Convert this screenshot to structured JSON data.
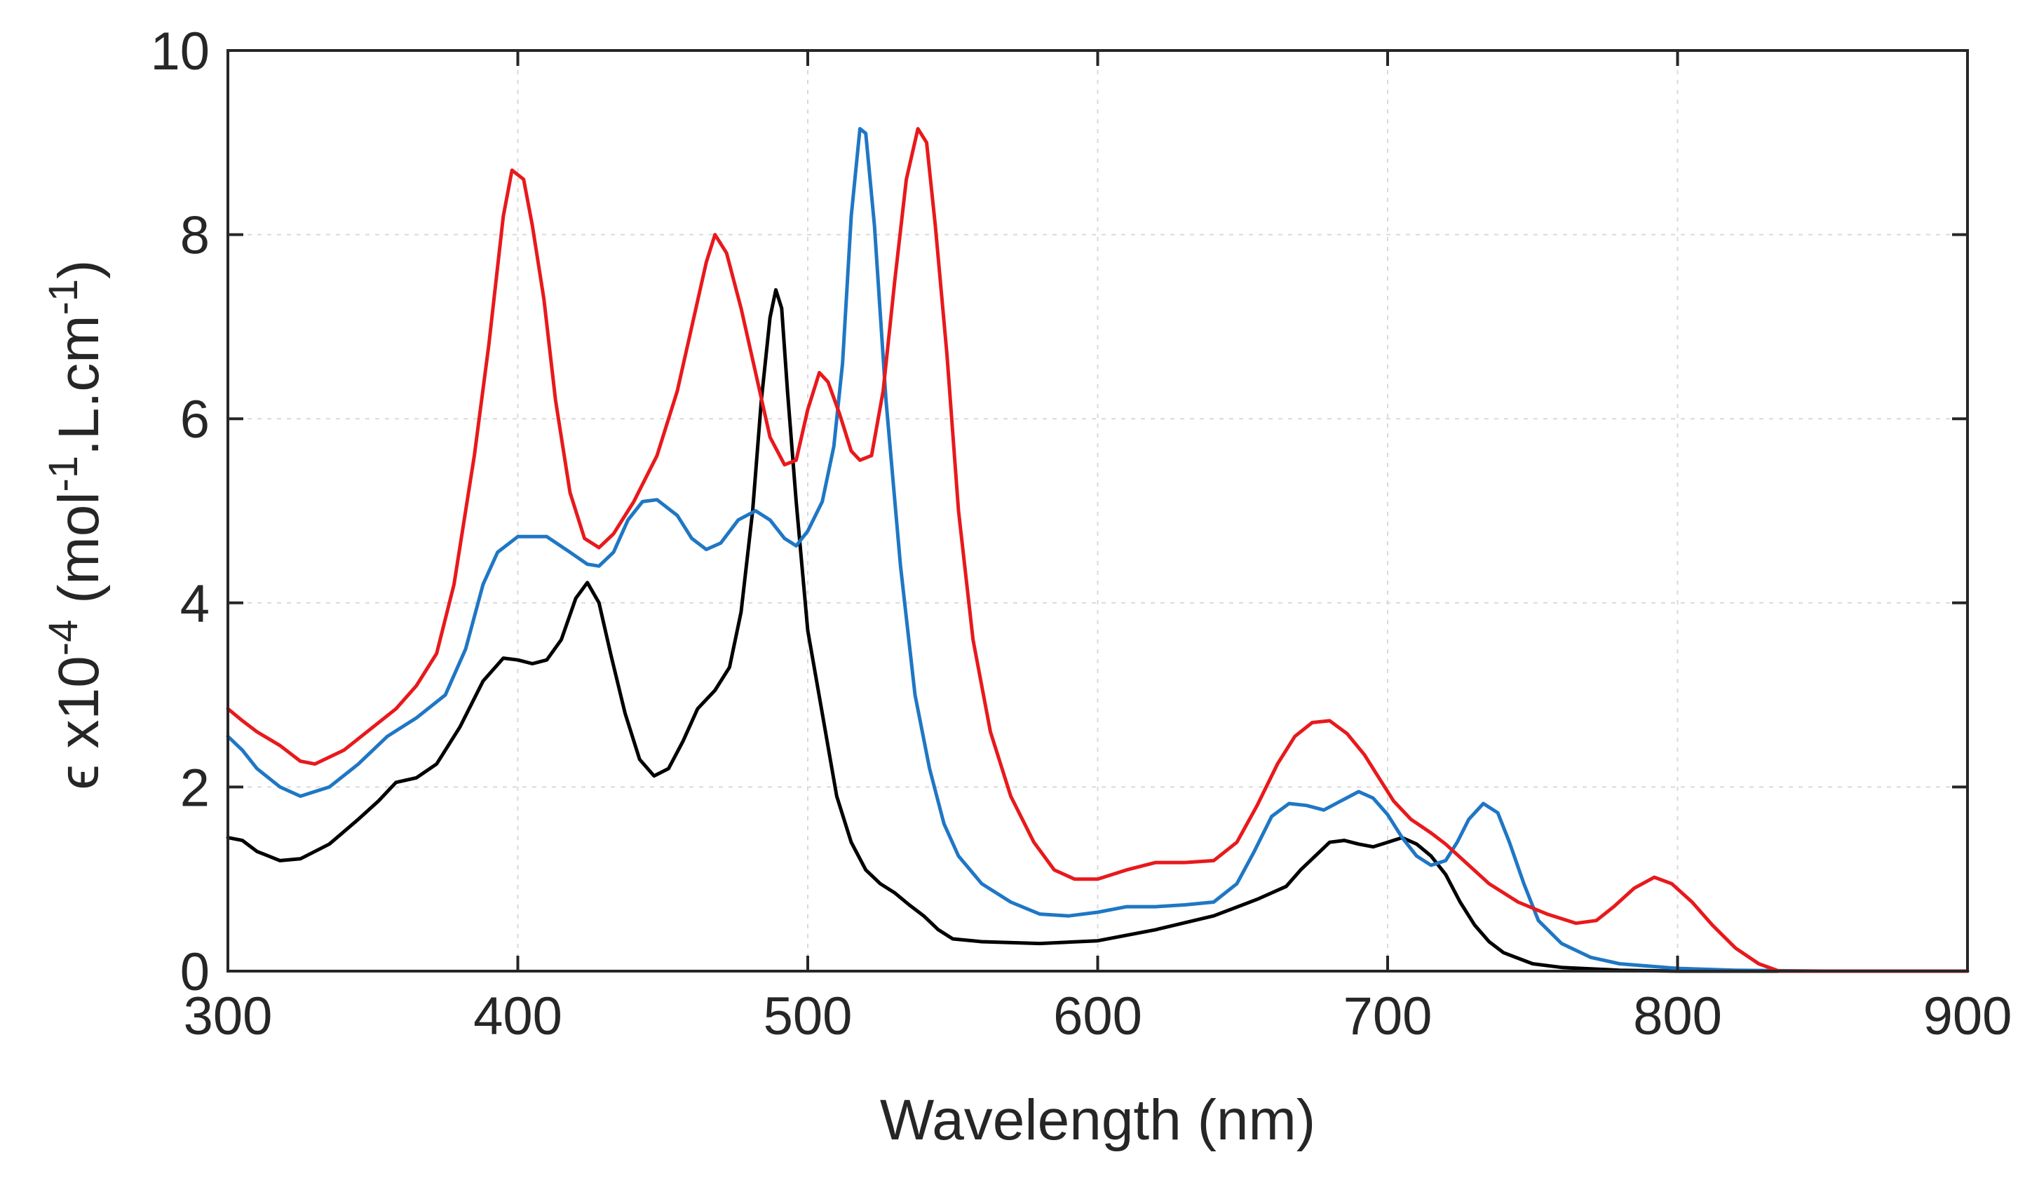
{
  "chart_data": {
    "type": "line",
    "title": "",
    "xlabel": "Wavelength (nm)",
    "ylabel_parts": [
      "ϵ",
      " x10",
      "-4",
      " (mol",
      "-1",
      ".L.cm",
      "-1",
      ")"
    ],
    "xlim": [
      300,
      900
    ],
    "ylim": [
      0,
      10
    ],
    "xticks": [
      300,
      400,
      500,
      600,
      700,
      800,
      900
    ],
    "yticks": [
      0,
      2,
      4,
      6,
      8,
      10
    ],
    "grid": true,
    "legend": "none",
    "series": [
      {
        "name": "black",
        "color": "#000000",
        "points": [
          [
            300,
            1.45
          ],
          [
            305,
            1.42
          ],
          [
            310,
            1.3
          ],
          [
            318,
            1.2
          ],
          [
            325,
            1.22
          ],
          [
            335,
            1.38
          ],
          [
            345,
            1.65
          ],
          [
            352,
            1.85
          ],
          [
            358,
            2.05
          ],
          [
            365,
            2.1
          ],
          [
            372,
            2.25
          ],
          [
            380,
            2.65
          ],
          [
            388,
            3.15
          ],
          [
            395,
            3.4
          ],
          [
            400,
            3.38
          ],
          [
            405,
            3.34
          ],
          [
            410,
            3.38
          ],
          [
            415,
            3.6
          ],
          [
            420,
            4.05
          ],
          [
            424,
            4.22
          ],
          [
            428,
            4.0
          ],
          [
            432,
            3.45
          ],
          [
            437,
            2.8
          ],
          [
            442,
            2.3
          ],
          [
            447,
            2.12
          ],
          [
            452,
            2.2
          ],
          [
            457,
            2.5
          ],
          [
            462,
            2.85
          ],
          [
            468,
            3.05
          ],
          [
            473,
            3.3
          ],
          [
            477,
            3.9
          ],
          [
            481,
            5.0
          ],
          [
            484,
            6.2
          ],
          [
            487,
            7.1
          ],
          [
            489,
            7.4
          ],
          [
            491,
            7.2
          ],
          [
            493,
            6.3
          ],
          [
            496,
            5.1
          ],
          [
            500,
            3.7
          ],
          [
            505,
            2.8
          ],
          [
            510,
            1.9
          ],
          [
            515,
            1.4
          ],
          [
            520,
            1.1
          ],
          [
            525,
            0.95
          ],
          [
            530,
            0.85
          ],
          [
            535,
            0.72
          ],
          [
            540,
            0.6
          ],
          [
            545,
            0.45
          ],
          [
            550,
            0.35
          ],
          [
            560,
            0.32
          ],
          [
            580,
            0.3
          ],
          [
            600,
            0.33
          ],
          [
            620,
            0.45
          ],
          [
            640,
            0.6
          ],
          [
            655,
            0.78
          ],
          [
            665,
            0.92
          ],
          [
            670,
            1.1
          ],
          [
            675,
            1.25
          ],
          [
            680,
            1.4
          ],
          [
            685,
            1.42
          ],
          [
            690,
            1.38
          ],
          [
            695,
            1.35
          ],
          [
            700,
            1.4
          ],
          [
            705,
            1.45
          ],
          [
            710,
            1.38
          ],
          [
            715,
            1.25
          ],
          [
            720,
            1.05
          ],
          [
            725,
            0.75
          ],
          [
            730,
            0.5
          ],
          [
            735,
            0.32
          ],
          [
            740,
            0.2
          ],
          [
            750,
            0.08
          ],
          [
            760,
            0.04
          ],
          [
            780,
            0.01
          ],
          [
            800,
            0.0
          ],
          [
            850,
            0.0
          ],
          [
            900,
            0.0
          ]
        ]
      },
      {
        "name": "blue",
        "color": "#1f77c4",
        "points": [
          [
            300,
            2.55
          ],
          [
            305,
            2.4
          ],
          [
            310,
            2.2
          ],
          [
            318,
            2.0
          ],
          [
            325,
            1.9
          ],
          [
            335,
            2.0
          ],
          [
            345,
            2.25
          ],
          [
            355,
            2.55
          ],
          [
            365,
            2.75
          ],
          [
            375,
            3.0
          ],
          [
            382,
            3.5
          ],
          [
            388,
            4.2
          ],
          [
            393,
            4.55
          ],
          [
            400,
            4.72
          ],
          [
            410,
            4.72
          ],
          [
            418,
            4.55
          ],
          [
            424,
            4.42
          ],
          [
            428,
            4.4
          ],
          [
            433,
            4.55
          ],
          [
            438,
            4.9
          ],
          [
            443,
            5.1
          ],
          [
            448,
            5.12
          ],
          [
            455,
            4.95
          ],
          [
            460,
            4.7
          ],
          [
            465,
            4.58
          ],
          [
            470,
            4.65
          ],
          [
            476,
            4.9
          ],
          [
            482,
            5.0
          ],
          [
            487,
            4.9
          ],
          [
            492,
            4.7
          ],
          [
            496,
            4.62
          ],
          [
            500,
            4.78
          ],
          [
            505,
            5.1
          ],
          [
            509,
            5.7
          ],
          [
            512,
            6.6
          ],
          [
            515,
            8.2
          ],
          [
            518,
            9.15
          ],
          [
            520,
            9.1
          ],
          [
            523,
            8.1
          ],
          [
            527,
            6.2
          ],
          [
            532,
            4.4
          ],
          [
            537,
            3.0
          ],
          [
            542,
            2.2
          ],
          [
            547,
            1.6
          ],
          [
            552,
            1.25
          ],
          [
            560,
            0.95
          ],
          [
            570,
            0.75
          ],
          [
            580,
            0.62
          ],
          [
            590,
            0.6
          ],
          [
            600,
            0.64
          ],
          [
            610,
            0.7
          ],
          [
            620,
            0.7
          ],
          [
            630,
            0.72
          ],
          [
            640,
            0.75
          ],
          [
            648,
            0.95
          ],
          [
            654,
            1.3
          ],
          [
            660,
            1.68
          ],
          [
            666,
            1.82
          ],
          [
            672,
            1.8
          ],
          [
            678,
            1.75
          ],
          [
            684,
            1.85
          ],
          [
            690,
            1.95
          ],
          [
            695,
            1.88
          ],
          [
            700,
            1.7
          ],
          [
            705,
            1.45
          ],
          [
            710,
            1.25
          ],
          [
            715,
            1.15
          ],
          [
            720,
            1.2
          ],
          [
            724,
            1.4
          ],
          [
            728,
            1.65
          ],
          [
            733,
            1.82
          ],
          [
            738,
            1.72
          ],
          [
            742,
            1.4
          ],
          [
            747,
            0.95
          ],
          [
            752,
            0.55
          ],
          [
            760,
            0.3
          ],
          [
            770,
            0.15
          ],
          [
            780,
            0.08
          ],
          [
            800,
            0.03
          ],
          [
            820,
            0.01
          ],
          [
            850,
            0.0
          ],
          [
            900,
            0.0
          ]
        ]
      },
      {
        "name": "red",
        "color": "#e8191c",
        "points": [
          [
            300,
            2.85
          ],
          [
            305,
            2.72
          ],
          [
            310,
            2.6
          ],
          [
            318,
            2.45
          ],
          [
            325,
            2.28
          ],
          [
            330,
            2.25
          ],
          [
            340,
            2.4
          ],
          [
            350,
            2.65
          ],
          [
            358,
            2.85
          ],
          [
            365,
            3.1
          ],
          [
            372,
            3.45
          ],
          [
            378,
            4.2
          ],
          [
            385,
            5.6
          ],
          [
            390,
            6.8
          ],
          [
            395,
            8.2
          ],
          [
            398,
            8.7
          ],
          [
            402,
            8.6
          ],
          [
            405,
            8.1
          ],
          [
            409,
            7.3
          ],
          [
            413,
            6.2
          ],
          [
            418,
            5.2
          ],
          [
            423,
            4.7
          ],
          [
            428,
            4.6
          ],
          [
            433,
            4.75
          ],
          [
            440,
            5.1
          ],
          [
            448,
            5.6
          ],
          [
            455,
            6.3
          ],
          [
            460,
            7.0
          ],
          [
            465,
            7.7
          ],
          [
            468,
            8.0
          ],
          [
            472,
            7.8
          ],
          [
            477,
            7.2
          ],
          [
            482,
            6.5
          ],
          [
            487,
            5.8
          ],
          [
            492,
            5.5
          ],
          [
            496,
            5.55
          ],
          [
            500,
            6.1
          ],
          [
            504,
            6.5
          ],
          [
            507,
            6.4
          ],
          [
            511,
            6.05
          ],
          [
            515,
            5.65
          ],
          [
            518,
            5.55
          ],
          [
            522,
            5.6
          ],
          [
            526,
            6.3
          ],
          [
            530,
            7.5
          ],
          [
            534,
            8.6
          ],
          [
            538,
            9.15
          ],
          [
            541,
            9.0
          ],
          [
            544,
            8.1
          ],
          [
            548,
            6.7
          ],
          [
            552,
            5.0
          ],
          [
            557,
            3.6
          ],
          [
            563,
            2.6
          ],
          [
            570,
            1.9
          ],
          [
            578,
            1.4
          ],
          [
            585,
            1.1
          ],
          [
            592,
            1.0
          ],
          [
            600,
            1.0
          ],
          [
            610,
            1.1
          ],
          [
            620,
            1.18
          ],
          [
            630,
            1.18
          ],
          [
            640,
            1.2
          ],
          [
            648,
            1.4
          ],
          [
            655,
            1.8
          ],
          [
            662,
            2.25
          ],
          [
            668,
            2.55
          ],
          [
            674,
            2.7
          ],
          [
            680,
            2.72
          ],
          [
            686,
            2.58
          ],
          [
            692,
            2.35
          ],
          [
            697,
            2.1
          ],
          [
            702,
            1.85
          ],
          [
            708,
            1.65
          ],
          [
            715,
            1.5
          ],
          [
            720,
            1.38
          ],
          [
            728,
            1.15
          ],
          [
            735,
            0.95
          ],
          [
            745,
            0.75
          ],
          [
            755,
            0.62
          ],
          [
            765,
            0.52
          ],
          [
            772,
            0.55
          ],
          [
            778,
            0.7
          ],
          [
            785,
            0.9
          ],
          [
            792,
            1.02
          ],
          [
            798,
            0.95
          ],
          [
            805,
            0.75
          ],
          [
            812,
            0.5
          ],
          [
            820,
            0.25
          ],
          [
            828,
            0.08
          ],
          [
            835,
            0.0
          ],
          [
            900,
            0.0
          ]
        ]
      }
    ]
  }
}
